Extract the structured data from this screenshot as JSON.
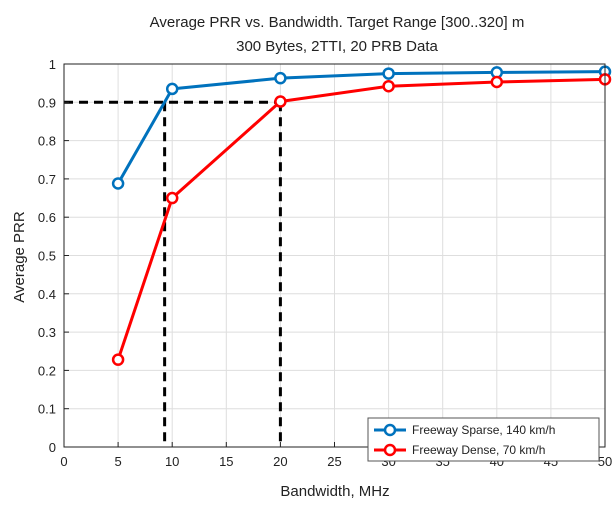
{
  "chart_data": {
    "type": "line",
    "title": "Average PRR vs. Bandwidth. Target Range [300..320] m",
    "subtitle": "300 Bytes, 2TTI, 20 PRB Data",
    "xlabel": "Bandwidth, MHz",
    "ylabel": "Average PRR",
    "xlim": [
      0,
      50
    ],
    "ylim": [
      0,
      1
    ],
    "xticks": [
      0,
      5,
      10,
      15,
      20,
      25,
      30,
      35,
      40,
      45,
      50
    ],
    "yticks": [
      0,
      0.1,
      0.2,
      0.3,
      0.4,
      0.5,
      0.6,
      0.7,
      0.8,
      0.9,
      1
    ],
    "ytick_labels": [
      "0",
      "0.1",
      "0.2",
      "0.3",
      "0.4",
      "0.5",
      "0.6",
      "0.7",
      "0.8",
      "0.9",
      "1"
    ],
    "grid": true,
    "legend_position": "bottom-right",
    "series": [
      {
        "name": "Freeway Sparse, 140 km/h",
        "color": "#0072BD",
        "marker": "circle",
        "x": [
          5,
          10,
          20,
          30,
          40,
          50
        ],
        "y": [
          0.688,
          0.935,
          0.963,
          0.975,
          0.978,
          0.98
        ]
      },
      {
        "name": "Freeway Dense, 70 km/h",
        "color": "#FF0000",
        "marker": "circle",
        "x": [
          5,
          10,
          20,
          30,
          40,
          50
        ],
        "y": [
          0.228,
          0.65,
          0.902,
          0.942,
          0.953,
          0.96
        ]
      }
    ],
    "reference_lines": {
      "color": "#000000",
      "style": "dashed",
      "y_level": 0.9,
      "x_values": [
        9.3,
        20
      ]
    }
  }
}
